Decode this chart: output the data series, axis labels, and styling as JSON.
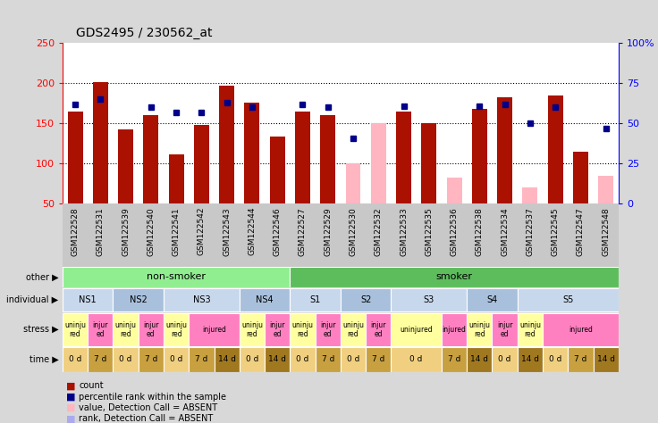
{
  "title": "GDS2495 / 230562_at",
  "samples": [
    "GSM122528",
    "GSM122531",
    "GSM122539",
    "GSM122540",
    "GSM122541",
    "GSM122542",
    "GSM122543",
    "GSM122544",
    "GSM122546",
    "GSM122527",
    "GSM122529",
    "GSM122530",
    "GSM122532",
    "GSM122533",
    "GSM122535",
    "GSM122536",
    "GSM122538",
    "GSM122534",
    "GSM122537",
    "GSM122545",
    "GSM122547",
    "GSM122548"
  ],
  "count_values": [
    165,
    201,
    143,
    160,
    112,
    148,
    197,
    176,
    134,
    165,
    160,
    100,
    150,
    165,
    150,
    83,
    168,
    183,
    70,
    185,
    115,
    85
  ],
  "count_absent": [
    false,
    false,
    false,
    false,
    false,
    false,
    false,
    false,
    false,
    false,
    false,
    true,
    true,
    false,
    false,
    true,
    false,
    false,
    true,
    false,
    false,
    true
  ],
  "percentile_values": [
    62,
    65,
    null,
    60,
    57,
    57,
    63,
    60,
    null,
    62,
    60,
    41,
    null,
    61,
    null,
    null,
    61,
    62,
    50,
    60,
    null,
    47
  ],
  "percentile_absent": [
    false,
    false,
    false,
    false,
    false,
    false,
    false,
    false,
    false,
    false,
    false,
    false,
    true,
    false,
    true,
    true,
    false,
    false,
    false,
    false,
    true,
    false
  ],
  "ylim_left": [
    50,
    250
  ],
  "ylim_right": [
    0,
    100
  ],
  "other_groups": [
    {
      "label": "non-smoker",
      "start": 0,
      "end": 9,
      "color": "#90EE90"
    },
    {
      "label": "smoker",
      "start": 9,
      "end": 22,
      "color": "#5DBD5D"
    }
  ],
  "individual_groups": [
    {
      "label": "NS1",
      "start": 0,
      "end": 2,
      "color": "#C8D8EC"
    },
    {
      "label": "NS2",
      "start": 2,
      "end": 4,
      "color": "#A8C0DC"
    },
    {
      "label": "NS3",
      "start": 4,
      "end": 7,
      "color": "#C8D8EC"
    },
    {
      "label": "NS4",
      "start": 7,
      "end": 9,
      "color": "#A8C0DC"
    },
    {
      "label": "S1",
      "start": 9,
      "end": 11,
      "color": "#C8D8EC"
    },
    {
      "label": "S2",
      "start": 11,
      "end": 13,
      "color": "#A8C0DC"
    },
    {
      "label": "S3",
      "start": 13,
      "end": 16,
      "color": "#C8D8EC"
    },
    {
      "label": "S4",
      "start": 16,
      "end": 18,
      "color": "#A8C0DC"
    },
    {
      "label": "S5",
      "start": 18,
      "end": 22,
      "color": "#C8D8EC"
    }
  ],
  "stress_groups": [
    {
      "label": "uninju\nred",
      "start": 0,
      "end": 1,
      "color": "#FFFFA0"
    },
    {
      "label": "injur\ned",
      "start": 1,
      "end": 2,
      "color": "#FF80C0"
    },
    {
      "label": "uninju\nred",
      "start": 2,
      "end": 3,
      "color": "#FFFFA0"
    },
    {
      "label": "injur\ned",
      "start": 3,
      "end": 4,
      "color": "#FF80C0"
    },
    {
      "label": "uninju\nred",
      "start": 4,
      "end": 5,
      "color": "#FFFFA0"
    },
    {
      "label": "injured",
      "start": 5,
      "end": 7,
      "color": "#FF80C0"
    },
    {
      "label": "uninju\nred",
      "start": 7,
      "end": 8,
      "color": "#FFFFA0"
    },
    {
      "label": "injur\ned",
      "start": 8,
      "end": 9,
      "color": "#FF80C0"
    },
    {
      "label": "uninju\nred",
      "start": 9,
      "end": 10,
      "color": "#FFFFA0"
    },
    {
      "label": "injur\ned",
      "start": 10,
      "end": 11,
      "color": "#FF80C0"
    },
    {
      "label": "uninju\nred",
      "start": 11,
      "end": 12,
      "color": "#FFFFA0"
    },
    {
      "label": "injur\ned",
      "start": 12,
      "end": 13,
      "color": "#FF80C0"
    },
    {
      "label": "uninjured",
      "start": 13,
      "end": 15,
      "color": "#FFFFA0"
    },
    {
      "label": "injured",
      "start": 15,
      "end": 16,
      "color": "#FF80C0"
    },
    {
      "label": "uninju\nred",
      "start": 16,
      "end": 17,
      "color": "#FFFFA0"
    },
    {
      "label": "injur\ned",
      "start": 17,
      "end": 18,
      "color": "#FF80C0"
    },
    {
      "label": "uninju\nred",
      "start": 18,
      "end": 19,
      "color": "#FFFFA0"
    },
    {
      "label": "injured",
      "start": 19,
      "end": 22,
      "color": "#FF80C0"
    }
  ],
  "time_groups": [
    {
      "label": "0 d",
      "start": 0,
      "end": 1,
      "color": "#F0D080"
    },
    {
      "label": "7 d",
      "start": 1,
      "end": 2,
      "color": "#C8A040"
    },
    {
      "label": "0 d",
      "start": 2,
      "end": 3,
      "color": "#F0D080"
    },
    {
      "label": "7 d",
      "start": 3,
      "end": 4,
      "color": "#C8A040"
    },
    {
      "label": "0 d",
      "start": 4,
      "end": 5,
      "color": "#F0D080"
    },
    {
      "label": "7 d",
      "start": 5,
      "end": 6,
      "color": "#C8A040"
    },
    {
      "label": "14 d",
      "start": 6,
      "end": 7,
      "color": "#A07820"
    },
    {
      "label": "0 d",
      "start": 7,
      "end": 8,
      "color": "#F0D080"
    },
    {
      "label": "14 d",
      "start": 8,
      "end": 9,
      "color": "#A07820"
    },
    {
      "label": "0 d",
      "start": 9,
      "end": 10,
      "color": "#F0D080"
    },
    {
      "label": "7 d",
      "start": 10,
      "end": 11,
      "color": "#C8A040"
    },
    {
      "label": "0 d",
      "start": 11,
      "end": 12,
      "color": "#F0D080"
    },
    {
      "label": "7 d",
      "start": 12,
      "end": 13,
      "color": "#C8A040"
    },
    {
      "label": "0 d",
      "start": 13,
      "end": 15,
      "color": "#F0D080"
    },
    {
      "label": "7 d",
      "start": 15,
      "end": 16,
      "color": "#C8A040"
    },
    {
      "label": "14 d",
      "start": 16,
      "end": 17,
      "color": "#A07820"
    },
    {
      "label": "0 d",
      "start": 17,
      "end": 18,
      "color": "#F0D080"
    },
    {
      "label": "14 d",
      "start": 18,
      "end": 19,
      "color": "#A07820"
    },
    {
      "label": "0 d",
      "start": 19,
      "end": 20,
      "color": "#F0D080"
    },
    {
      "label": "7 d",
      "start": 20,
      "end": 21,
      "color": "#C8A040"
    },
    {
      "label": "14 d",
      "start": 21,
      "end": 22,
      "color": "#A07820"
    }
  ],
  "bar_color_present": "#AA1100",
  "bar_color_absent": "#FFB6C1",
  "dot_color_present": "#00008B",
  "dot_color_absent": "#AAAAEE",
  "bg_color": "#D8D8D8",
  "plot_bg_color": "#FFFFFF",
  "xtick_bg_color": "#C8C8C8"
}
